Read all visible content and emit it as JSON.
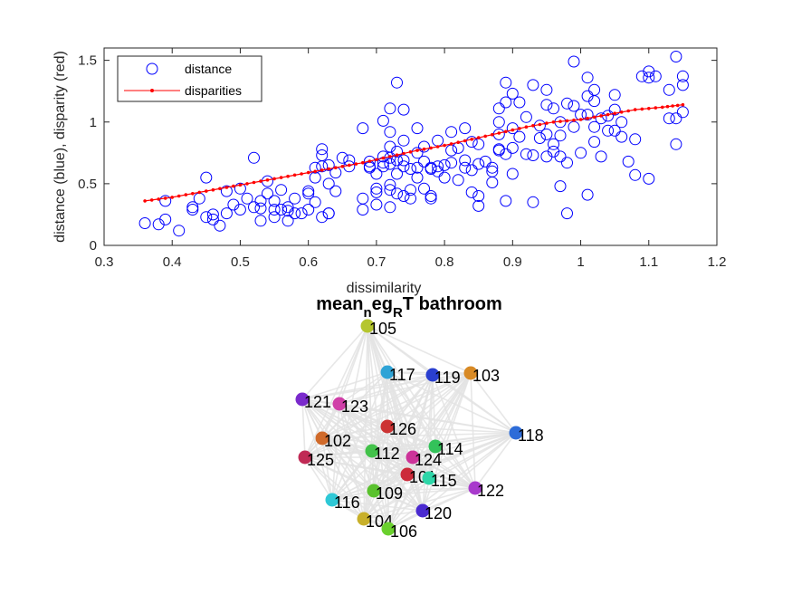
{
  "chart_data": [
    {
      "type": "scatter",
      "xlabel": "dissimilarity",
      "ylabel": "distance (blue), disparity (red)",
      "xlim": [
        0.3,
        1.2
      ],
      "ylim": [
        0,
        1.6
      ],
      "xticks": [
        "0.3",
        "0.4",
        "0.5",
        "0.6",
        "0.7",
        "0.8",
        "0.9",
        "1",
        "1.1",
        "1.2"
      ],
      "yticks": [
        "0",
        "0.5",
        "1",
        "1.5"
      ],
      "legend_position": "top-left",
      "series": [
        {
          "name": "distance",
          "color": "#0000ff",
          "marker": "open-circle",
          "points": [
            [
              0.36,
              0.18
            ],
            [
              0.38,
              0.17
            ],
            [
              0.39,
              0.21
            ],
            [
              0.39,
              0.36
            ],
            [
              0.41,
              0.12
            ],
            [
              0.43,
              0.31
            ],
            [
              0.43,
              0.29
            ],
            [
              0.44,
              0.38
            ],
            [
              0.45,
              0.23
            ],
            [
              0.45,
              0.55
            ],
            [
              0.46,
              0.21
            ],
            [
              0.46,
              0.25
            ],
            [
              0.47,
              0.16
            ],
            [
              0.48,
              0.26
            ],
            [
              0.48,
              0.44
            ],
            [
              0.49,
              0.33
            ],
            [
              0.5,
              0.46
            ],
            [
              0.5,
              0.29
            ],
            [
              0.51,
              0.38
            ],
            [
              0.52,
              0.31
            ],
            [
              0.52,
              0.71
            ],
            [
              0.53,
              0.36
            ],
            [
              0.53,
              0.3
            ],
            [
              0.53,
              0.2
            ],
            [
              0.54,
              0.52
            ],
            [
              0.54,
              0.42
            ],
            [
              0.55,
              0.36
            ],
            [
              0.55,
              0.29
            ],
            [
              0.55,
              0.23
            ],
            [
              0.56,
              0.45
            ],
            [
              0.56,
              0.29
            ],
            [
              0.57,
              0.28
            ],
            [
              0.57,
              0.31
            ],
            [
              0.57,
              0.2
            ],
            [
              0.58,
              0.38
            ],
            [
              0.58,
              0.26
            ],
            [
              0.59,
              0.26
            ],
            [
              0.6,
              0.29
            ],
            [
              0.6,
              0.42
            ],
            [
              0.6,
              0.44
            ],
            [
              0.61,
              0.55
            ],
            [
              0.61,
              0.35
            ],
            [
              0.61,
              0.63
            ],
            [
              0.62,
              0.23
            ],
            [
              0.62,
              0.64
            ],
            [
              0.62,
              0.73
            ],
            [
              0.62,
              0.78
            ],
            [
              0.63,
              0.65
            ],
            [
              0.63,
              0.5
            ],
            [
              0.63,
              0.26
            ],
            [
              0.63,
              0.26
            ],
            [
              0.64,
              0.59
            ],
            [
              0.64,
              0.44
            ],
            [
              0.65,
              0.71
            ],
            [
              0.66,
              0.64
            ],
            [
              0.66,
              0.69
            ],
            [
              0.68,
              0.95
            ],
            [
              0.68,
              0.29
            ],
            [
              0.68,
              0.38
            ],
            [
              0.69,
              0.64
            ],
            [
              0.69,
              0.63
            ],
            [
              0.69,
              0.68
            ],
            [
              0.7,
              0.33
            ],
            [
              0.7,
              0.46
            ],
            [
              0.7,
              0.43
            ],
            [
              0.7,
              0.58
            ],
            [
              0.71,
              0.72
            ],
            [
              0.71,
              0.67
            ],
            [
              0.71,
              0.64
            ],
            [
              0.71,
              1.01
            ],
            [
              0.72,
              1.11
            ],
            [
              0.72,
              0.92
            ],
            [
              0.72,
              0.8
            ],
            [
              0.72,
              0.71
            ],
            [
              0.72,
              0.66
            ],
            [
              0.72,
              0.49
            ],
            [
              0.72,
              0.45
            ],
            [
              0.72,
              0.31
            ],
            [
              0.73,
              1.32
            ],
            [
              0.73,
              0.42
            ],
            [
              0.73,
              0.69
            ],
            [
              0.73,
              0.76
            ],
            [
              0.73,
              0.58
            ],
            [
              0.74,
              1.1
            ],
            [
              0.74,
              0.85
            ],
            [
              0.74,
              0.69
            ],
            [
              0.74,
              0.64
            ],
            [
              0.74,
              0.4
            ],
            [
              0.75,
              0.62
            ],
            [
              0.75,
              0.45
            ],
            [
              0.75,
              0.38
            ],
            [
              0.76,
              0.95
            ],
            [
              0.76,
              0.75
            ],
            [
              0.76,
              0.63
            ],
            [
              0.76,
              0.55
            ],
            [
              0.77,
              0.8
            ],
            [
              0.77,
              0.68
            ],
            [
              0.77,
              0.46
            ],
            [
              0.78,
              0.4
            ],
            [
              0.78,
              0.38
            ],
            [
              0.78,
              0.63
            ],
            [
              0.78,
              0.62
            ],
            [
              0.79,
              0.85
            ],
            [
              0.79,
              0.64
            ],
            [
              0.79,
              0.6
            ],
            [
              0.8,
              0.65
            ],
            [
              0.8,
              0.55
            ],
            [
              0.81,
              0.92
            ],
            [
              0.81,
              0.77
            ],
            [
              0.81,
              0.67
            ],
            [
              0.82,
              0.79
            ],
            [
              0.82,
              0.53
            ],
            [
              0.83,
              0.95
            ],
            [
              0.83,
              0.69
            ],
            [
              0.83,
              0.63
            ],
            [
              0.84,
              0.61
            ],
            [
              0.84,
              0.43
            ],
            [
              0.84,
              0.84
            ],
            [
              0.85,
              0.82
            ],
            [
              0.85,
              0.66
            ],
            [
              0.85,
              0.4
            ],
            [
              0.85,
              0.32
            ],
            [
              0.86,
              0.68
            ],
            [
              0.87,
              0.6
            ],
            [
              0.87,
              0.51
            ],
            [
              0.87,
              0.63
            ],
            [
              0.88,
              0.77
            ],
            [
              0.88,
              0.78
            ],
            [
              0.88,
              0.9
            ],
            [
              0.88,
              1.0
            ],
            [
              0.88,
              1.11
            ],
            [
              0.89,
              1.32
            ],
            [
              0.89,
              1.16
            ],
            [
              0.89,
              0.74
            ],
            [
              0.89,
              0.36
            ],
            [
              0.9,
              0.58
            ],
            [
              0.9,
              1.23
            ],
            [
              0.9,
              0.95
            ],
            [
              0.9,
              0.79
            ],
            [
              0.91,
              1.16
            ],
            [
              0.91,
              0.88
            ],
            [
              0.92,
              0.74
            ],
            [
              0.92,
              1.04
            ],
            [
              0.93,
              1.3
            ],
            [
              0.93,
              0.73
            ],
            [
              0.93,
              0.35
            ],
            [
              0.94,
              0.97
            ],
            [
              0.94,
              0.87
            ],
            [
              0.95,
              0.72
            ],
            [
              0.95,
              1.26
            ],
            [
              0.95,
              1.14
            ],
            [
              0.95,
              0.9
            ],
            [
              0.96,
              0.82
            ],
            [
              0.96,
              0.76
            ],
            [
              0.96,
              1.11
            ],
            [
              0.97,
              1.0
            ],
            [
              0.97,
              0.89
            ],
            [
              0.97,
              0.72
            ],
            [
              0.97,
              0.48
            ],
            [
              0.98,
              1.15
            ],
            [
              0.98,
              0.67
            ],
            [
              0.98,
              0.26
            ],
            [
              0.99,
              1.49
            ],
            [
              0.99,
              1.13
            ],
            [
              0.99,
              0.96
            ],
            [
              1.0,
              1.06
            ],
            [
              1.0,
              0.75
            ],
            [
              1.01,
              0.41
            ],
            [
              1.01,
              1.21
            ],
            [
              1.01,
              1.36
            ],
            [
              1.01,
              1.06
            ],
            [
              1.02,
              0.96
            ],
            [
              1.02,
              0.84
            ],
            [
              1.02,
              1.26
            ],
            [
              1.02,
              1.17
            ],
            [
              1.03,
              0.72
            ],
            [
              1.03,
              1.03
            ],
            [
              1.04,
              1.05
            ],
            [
              1.04,
              0.93
            ],
            [
              1.05,
              1.1
            ],
            [
              1.05,
              1.22
            ],
            [
              1.05,
              0.93
            ],
            [
              1.06,
              1.0
            ],
            [
              1.06,
              0.88
            ],
            [
              1.07,
              0.68
            ],
            [
              1.08,
              0.57
            ],
            [
              1.08,
              0.86
            ],
            [
              1.09,
              1.37
            ],
            [
              1.1,
              1.36
            ],
            [
              1.1,
              1.41
            ],
            [
              1.1,
              0.54
            ],
            [
              1.11,
              1.37
            ],
            [
              1.13,
              1.26
            ],
            [
              1.13,
              1.03
            ],
            [
              1.14,
              1.53
            ],
            [
              1.14,
              1.03
            ],
            [
              1.14,
              0.82
            ],
            [
              1.15,
              1.37
            ],
            [
              1.15,
              1.3
            ],
            [
              1.15,
              1.08
            ]
          ]
        },
        {
          "name": "disparities",
          "color": "#ff0000",
          "marker": "line-dot",
          "points": [
            [
              0.36,
              0.36
            ],
            [
              0.4,
              0.39
            ],
            [
              0.44,
              0.43
            ],
            [
              0.48,
              0.47
            ],
            [
              0.52,
              0.51
            ],
            [
              0.56,
              0.55
            ],
            [
              0.6,
              0.59
            ],
            [
              0.64,
              0.63
            ],
            [
              0.68,
              0.67
            ],
            [
              0.72,
              0.72
            ],
            [
              0.76,
              0.77
            ],
            [
              0.8,
              0.81
            ],
            [
              0.84,
              0.86
            ],
            [
              0.88,
              0.91
            ],
            [
              0.92,
              0.96
            ],
            [
              0.96,
              1.0
            ],
            [
              1.0,
              1.02
            ],
            [
              1.04,
              1.06
            ],
            [
              1.08,
              1.1
            ],
            [
              1.12,
              1.12
            ],
            [
              1.15,
              1.14
            ]
          ]
        }
      ]
    },
    {
      "type": "network",
      "title": "mean_neg_RT bathroom",
      "title_parts": [
        {
          "text": "mean",
          "shift": "base"
        },
        {
          "text": "n",
          "shift": "sub"
        },
        {
          "text": "eg",
          "shift": "base"
        },
        {
          "text": "R",
          "shift": "sub"
        },
        {
          "text": "T bathroom",
          "shift": "base"
        }
      ],
      "edge_color": "#e3e3e3",
      "nodes": [
        {
          "id": "105",
          "color": "#b5c62e"
        },
        {
          "id": "117",
          "color": "#2ea3d6"
        },
        {
          "id": "119",
          "color": "#2a3fd0"
        },
        {
          "id": "103",
          "color": "#d88a25"
        },
        {
          "id": "121",
          "color": "#7a2acc"
        },
        {
          "id": "123",
          "color": "#d03fa8"
        },
        {
          "id": "118",
          "color": "#2d6cd8"
        },
        {
          "id": "126",
          "color": "#cc3333"
        },
        {
          "id": "102",
          "color": "#d06a2a"
        },
        {
          "id": "112",
          "color": "#42c24a"
        },
        {
          "id": "114",
          "color": "#33c25a"
        },
        {
          "id": "124",
          "color": "#cc3399"
        },
        {
          "id": "125",
          "color": "#c02a55"
        },
        {
          "id": "101",
          "color": "#cc2a3a"
        },
        {
          "id": "115",
          "color": "#2ed6a8"
        },
        {
          "id": "122",
          "color": "#a83acc"
        },
        {
          "id": "109",
          "color": "#5ac22e"
        },
        {
          "id": "116",
          "color": "#2ec8d6"
        },
        {
          "id": "120",
          "color": "#4a2ad0"
        },
        {
          "id": "104",
          "color": "#c8b02a"
        },
        {
          "id": "106",
          "color": "#6ad02e"
        }
      ]
    }
  ]
}
